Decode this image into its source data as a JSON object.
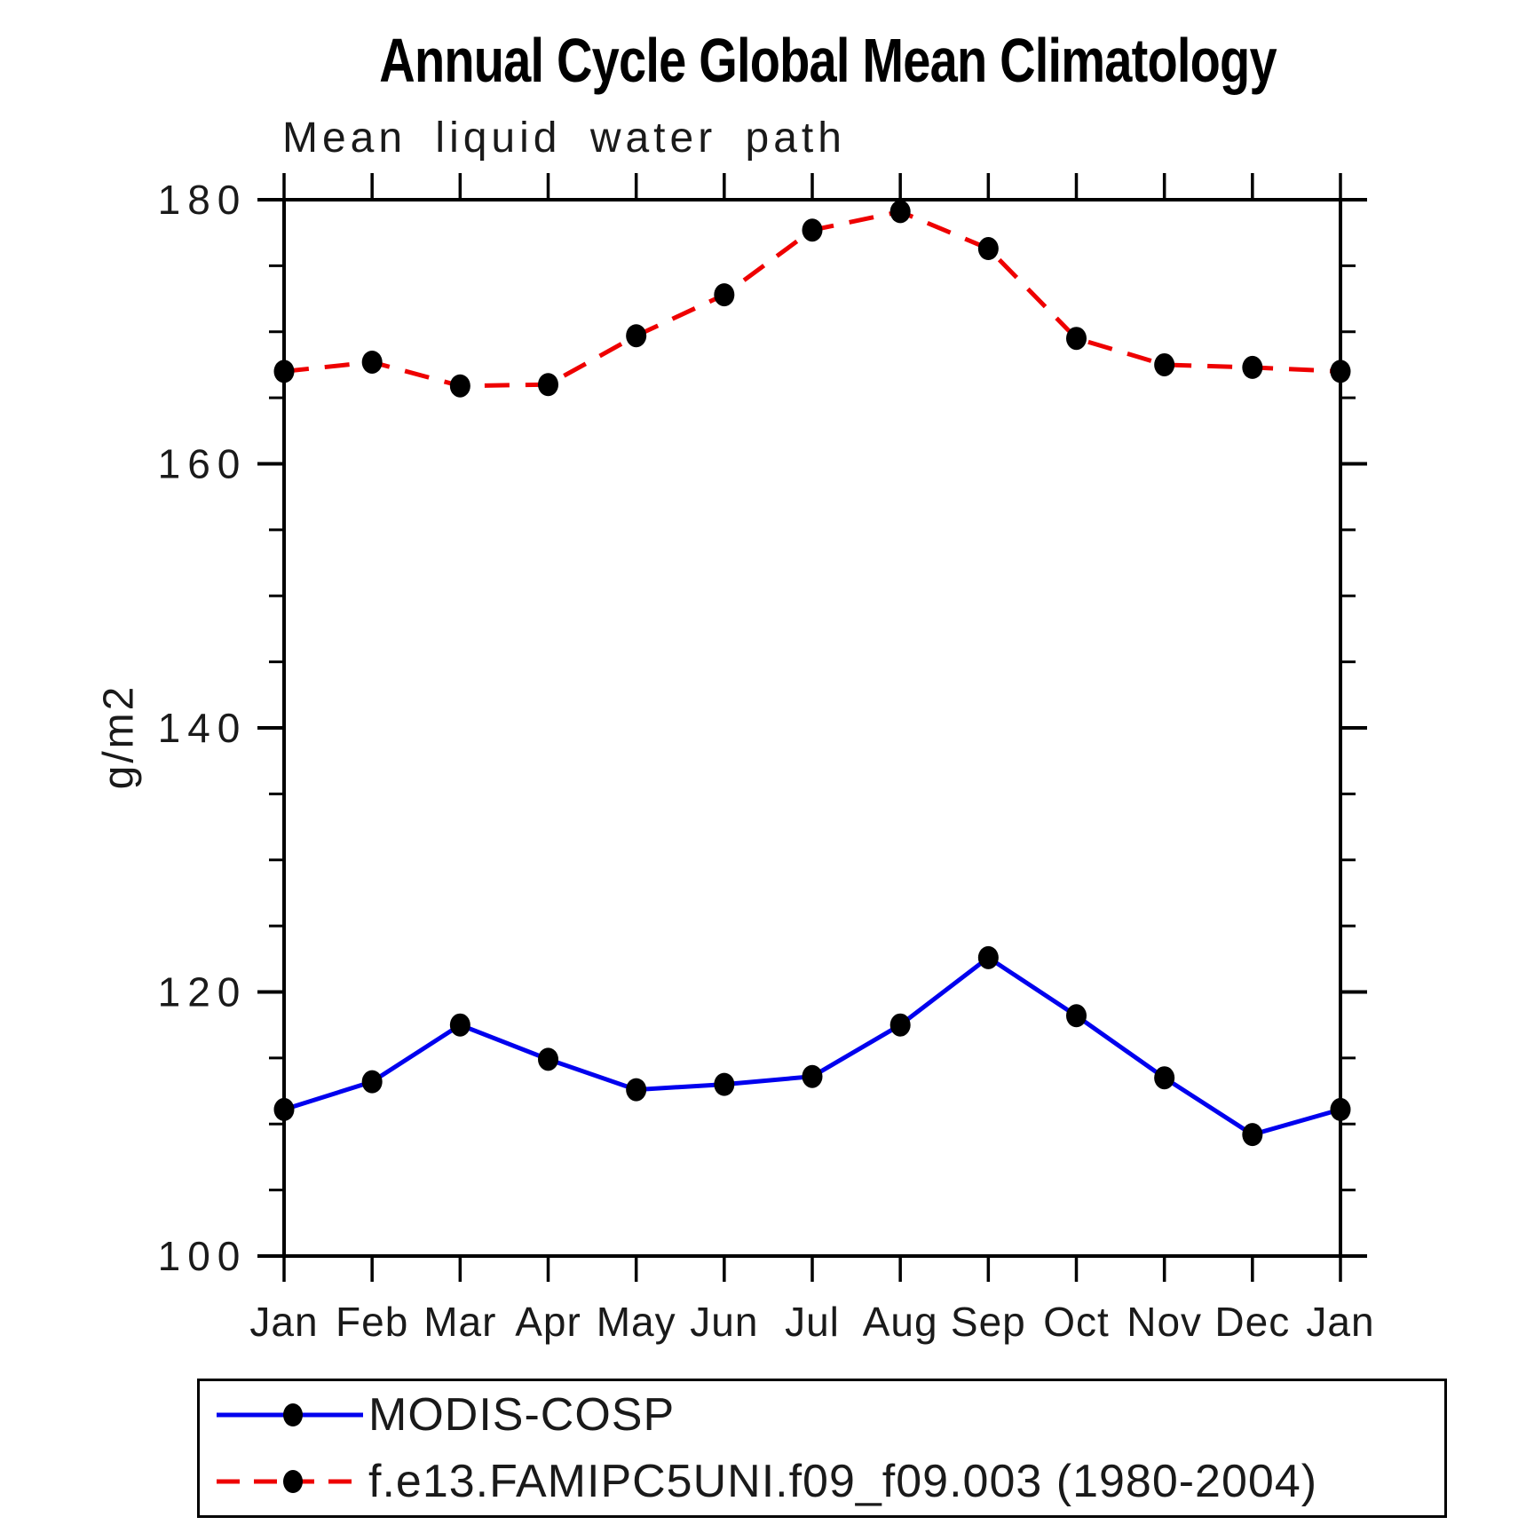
{
  "chart_data": {
    "type": "line",
    "title": "Annual Cycle Global Mean Climatology",
    "subtitle": "Mean liquid water path",
    "ylabel": "g/m2",
    "xlabel": "",
    "categories": [
      "Jan",
      "Feb",
      "Mar",
      "Apr",
      "May",
      "Jun",
      "Jul",
      "Aug",
      "Sep",
      "Oct",
      "Nov",
      "Dec",
      "Jan"
    ],
    "ylim": [
      100,
      180
    ],
    "ytick_major_step": 20,
    "ytick_minor_step": 5,
    "ytick_labels": [
      "100",
      "120",
      "140",
      "160",
      "180"
    ],
    "grid": false,
    "legend_position": "bottom",
    "frame_color": "#000000",
    "series": [
      {
        "name": "MODIS-COSP",
        "color": "#0000ee",
        "line_style": "solid",
        "marker": "circle",
        "marker_color": "#000000",
        "values": [
          111.1,
          113.2,
          117.5,
          114.9,
          112.6,
          113.0,
          113.6,
          117.5,
          122.6,
          118.2,
          113.5,
          109.2,
          111.1
        ]
      },
      {
        "name": "f.e13.FAMIPC5UNI.f09_f09.003 (1980-2004)",
        "color": "#ee0000",
        "line_style": "dashed",
        "marker": "circle",
        "marker_color": "#000000",
        "values": [
          167.0,
          167.7,
          165.9,
          166.0,
          169.7,
          172.8,
          177.7,
          179.1,
          176.3,
          169.5,
          167.5,
          167.3,
          167.0
        ]
      }
    ]
  }
}
